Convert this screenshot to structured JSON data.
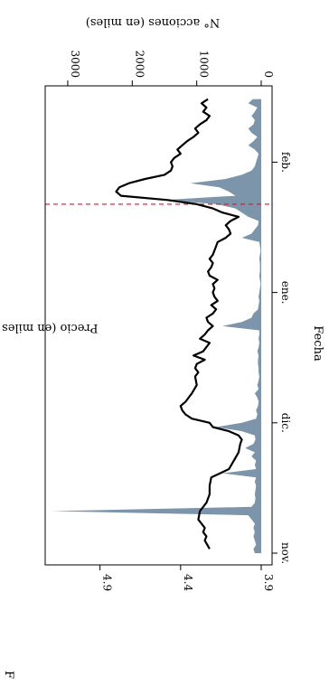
{
  "chart_data": {
    "type": "area+line",
    "orientation": "rotated-90-clockwise",
    "corner_letter": "F",
    "xlabel": "Fecha",
    "x_ticks": [
      "nov.",
      "dic.",
      "ene.",
      "feb."
    ],
    "x_range_days": [
      0,
      109
    ],
    "x_tick_days": [
      0,
      31,
      62,
      93
    ],
    "event_day": 83,
    "event_line_color": "#d9142a",
    "price_axis": {
      "label": "Precio (en miles de pesos)",
      "ticks": [
        "3.9",
        "4.4",
        "4.9"
      ],
      "range": [
        3.9,
        5.24
      ]
    },
    "volume_axis": {
      "label": "N° acciones (en miles)",
      "ticks": [
        "0",
        "1000",
        "2000",
        "3000"
      ],
      "range": [
        0,
        3350
      ]
    },
    "series": [
      {
        "name": "price",
        "kind": "line",
        "color": "#000000",
        "points": [
          [
            1,
            4.22
          ],
          [
            3,
            4.25
          ],
          [
            4,
            4.24
          ],
          [
            5,
            4.26
          ],
          [
            6,
            4.25
          ],
          [
            8,
            4.29
          ],
          [
            10,
            4.28
          ],
          [
            12,
            4.24
          ],
          [
            14,
            4.22
          ],
          [
            16,
            4.22
          ],
          [
            18,
            4.21
          ],
          [
            20,
            4.1
          ],
          [
            22,
            4.07
          ],
          [
            24,
            4.04
          ],
          [
            26,
            4.03
          ],
          [
            27,
            4.02
          ],
          [
            28,
            4.04
          ],
          [
            29,
            4.1
          ],
          [
            30,
            4.2
          ],
          [
            31,
            4.22
          ],
          [
            32,
            4.33
          ],
          [
            33,
            4.37
          ],
          [
            34,
            4.39
          ],
          [
            35,
            4.4
          ],
          [
            36,
            4.37
          ],
          [
            37,
            4.35
          ],
          [
            38,
            4.33
          ],
          [
            40,
            4.3
          ],
          [
            42,
            4.31
          ],
          [
            43,
            4.29
          ],
          [
            44,
            4.31
          ],
          [
            45,
            4.3
          ],
          [
            46,
            4.25
          ],
          [
            47,
            4.32
          ],
          [
            48,
            4.26
          ],
          [
            50,
            4.22
          ],
          [
            51,
            4.28
          ],
          [
            52,
            4.25
          ],
          [
            53,
            4.23
          ],
          [
            54,
            4.2
          ],
          [
            55,
            4.23
          ],
          [
            56,
            4.24
          ],
          [
            57,
            4.2
          ],
          [
            58,
            4.18
          ],
          [
            59,
            4.21
          ],
          [
            60,
            4.17
          ],
          [
            61,
            4.19
          ],
          [
            62,
            4.2
          ],
          [
            63,
            4.19
          ],
          [
            64,
            4.2
          ],
          [
            65,
            4.17
          ],
          [
            66,
            4.22
          ],
          [
            67,
            4.23
          ],
          [
            68,
            4.21
          ],
          [
            69,
            4.2
          ],
          [
            70,
            4.22
          ],
          [
            71,
            4.2
          ],
          [
            72,
            4.19
          ],
          [
            73,
            4.18
          ],
          [
            74,
            4.17
          ],
          [
            75,
            4.12
          ],
          [
            76,
            4.09
          ],
          [
            77,
            4.1
          ],
          [
            78,
            4.12
          ],
          [
            79,
            4.09
          ],
          [
            80,
            4.04
          ],
          [
            81,
            4.14
          ],
          [
            82,
            4.2
          ],
          [
            83,
            4.3
          ],
          [
            84,
            4.48
          ],
          [
            85,
            4.77
          ],
          [
            86,
            4.8
          ],
          [
            87,
            4.78
          ],
          [
            88,
            4.72
          ],
          [
            89,
            4.62
          ],
          [
            90,
            4.5
          ],
          [
            91,
            4.46
          ],
          [
            92,
            4.45
          ],
          [
            93,
            4.46
          ],
          [
            94,
            4.44
          ],
          [
            95,
            4.4
          ],
          [
            96,
            4.42
          ],
          [
            97,
            4.39
          ],
          [
            98,
            4.36
          ],
          [
            99,
            4.32
          ],
          [
            100,
            4.29
          ],
          [
            101,
            4.31
          ],
          [
            102,
            4.28
          ],
          [
            103,
            4.24
          ],
          [
            104,
            4.22
          ],
          [
            105,
            4.26
          ],
          [
            106,
            4.24
          ],
          [
            107,
            4.27
          ],
          [
            108,
            4.23
          ]
        ]
      },
      {
        "name": "volume",
        "kind": "area",
        "color": "#7d95aa",
        "points": [
          [
            0,
            100
          ],
          [
            1,
            120
          ],
          [
            2,
            80
          ],
          [
            3,
            100
          ],
          [
            4,
            120
          ],
          [
            5,
            100
          ],
          [
            6,
            120
          ],
          [
            7,
            100
          ],
          [
            8,
            150
          ],
          [
            9,
            200
          ],
          [
            10,
            3250
          ],
          [
            11,
            150
          ],
          [
            12,
            100
          ],
          [
            13,
            90
          ],
          [
            14,
            100
          ],
          [
            15,
            90
          ],
          [
            16,
            80
          ],
          [
            17,
            100
          ],
          [
            18,
            80
          ],
          [
            19,
            600
          ],
          [
            20,
            80
          ],
          [
            21,
            100
          ],
          [
            22,
            80
          ],
          [
            23,
            150
          ],
          [
            24,
            100
          ],
          [
            25,
            250
          ],
          [
            26,
            120
          ],
          [
            27,
            90
          ],
          [
            28,
            100
          ],
          [
            29,
            300
          ],
          [
            30,
            700
          ],
          [
            31,
            300
          ],
          [
            32,
            80
          ],
          [
            33,
            60
          ],
          [
            34,
            80
          ],
          [
            35,
            50
          ],
          [
            36,
            40
          ],
          [
            37,
            60
          ],
          [
            38,
            100
          ],
          [
            39,
            40
          ],
          [
            40,
            60
          ],
          [
            41,
            40
          ],
          [
            42,
            30
          ],
          [
            43,
            40
          ],
          [
            44,
            40
          ],
          [
            45,
            50
          ],
          [
            46,
            50
          ],
          [
            47,
            40
          ],
          [
            48,
            60
          ],
          [
            49,
            40
          ],
          [
            50,
            30
          ],
          [
            51,
            40
          ],
          [
            52,
            30
          ],
          [
            53,
            30
          ],
          [
            54,
            600
          ],
          [
            55,
            300
          ],
          [
            56,
            150
          ],
          [
            57,
            120
          ],
          [
            58,
            50
          ],
          [
            59,
            40
          ],
          [
            60,
            30
          ],
          [
            61,
            40
          ],
          [
            62,
            30
          ],
          [
            63,
            20
          ],
          [
            64,
            10
          ],
          [
            65,
            20
          ],
          [
            66,
            30
          ],
          [
            67,
            20
          ],
          [
            68,
            20
          ],
          [
            69,
            20
          ],
          [
            70,
            30
          ],
          [
            71,
            20
          ],
          [
            72,
            10
          ],
          [
            73,
            20
          ],
          [
            74,
            30
          ],
          [
            75,
            300
          ],
          [
            76,
            150
          ],
          [
            77,
            100
          ],
          [
            78,
            50
          ],
          [
            79,
            40
          ],
          [
            80,
            200
          ],
          [
            81,
            300
          ],
          [
            82,
            400
          ],
          [
            83,
            700
          ],
          [
            84,
            1500
          ],
          [
            85,
            400
          ],
          [
            86,
            500
          ],
          [
            87,
            650
          ],
          [
            88,
            1100
          ],
          [
            89,
            550
          ],
          [
            90,
            300
          ],
          [
            91,
            150
          ],
          [
            92,
            100
          ],
          [
            93,
            80
          ],
          [
            94,
            60
          ],
          [
            95,
            40
          ],
          [
            96,
            100
          ],
          [
            97,
            200
          ],
          [
            98,
            120
          ],
          [
            99,
            60
          ],
          [
            100,
            150
          ],
          [
            101,
            200
          ],
          [
            102,
            120
          ],
          [
            103,
            100
          ],
          [
            104,
            150
          ],
          [
            105,
            100
          ],
          [
            106,
            60
          ],
          [
            107,
            200
          ],
          [
            108,
            130
          ]
        ]
      }
    ]
  }
}
